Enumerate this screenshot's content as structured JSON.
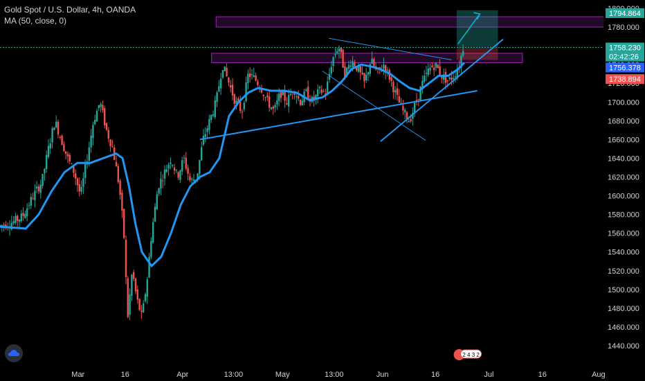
{
  "header": {
    "symbol_line": "Gold Spot / U.S. Dollar, 4h, OANDA",
    "indicator_line": "MA (50, close, 0)"
  },
  "colors": {
    "background": "#000000",
    "bull": "#26a69a",
    "bear": "#ef5350",
    "ma": "#2196f3",
    "trendline": "#2196f3",
    "zone": "#9c27b0",
    "target_arrow": "#00bcd4",
    "current_price": "#26a69a",
    "ma_label": "#2962ff",
    "low_label": "#ef5350"
  },
  "chart_data": {
    "type": "candlestick",
    "title": "Gold Spot / U.S. Dollar, 4h, OANDA",
    "indicator": "MA (50, close, 0)",
    "ylim": [
      1430,
      1800
    ],
    "y_ticks": [
      1440,
      1460,
      1480,
      1500,
      1520,
      1540,
      1560,
      1580,
      1600,
      1620,
      1640,
      1660,
      1680,
      1700,
      1720,
      1740,
      1760,
      1780,
      1800
    ],
    "y_tick_labels": [
      "1440.000",
      "1460.000",
      "1480.000",
      "1500.000",
      "1520.000",
      "1540.000",
      "1560.000",
      "1580.000",
      "1600.000",
      "1620.000",
      "1640.000",
      "1660.000",
      "1680.000",
      "1700.000",
      "1720.000",
      "1740.000",
      "1760.000",
      "1780.000",
      "1800.000"
    ],
    "x_ticks": [
      "Mar",
      "16",
      "Apr",
      "13:00",
      "May",
      "13:00",
      "Jun",
      "16",
      "Jul",
      "16",
      "Aug"
    ],
    "x_tick_pos": [
      0.121,
      0.194,
      0.283,
      0.362,
      0.438,
      0.518,
      0.593,
      0.675,
      0.758,
      0.841,
      0.928
    ],
    "price_path": [
      [
        0.0,
        1568
      ],
      [
        0.02,
        1572
      ],
      [
        0.035,
        1578
      ],
      [
        0.05,
        1598
      ],
      [
        0.065,
        1615
      ],
      [
        0.075,
        1650
      ],
      [
        0.085,
        1680
      ],
      [
        0.095,
        1660
      ],
      [
        0.105,
        1640
      ],
      [
        0.115,
        1625
      ],
      [
        0.125,
        1600
      ],
      [
        0.135,
        1640
      ],
      [
        0.145,
        1680
      ],
      [
        0.155,
        1700
      ],
      [
        0.165,
        1670
      ],
      [
        0.175,
        1650
      ],
      [
        0.185,
        1610
      ],
      [
        0.192,
        1560
      ],
      [
        0.198,
        1470
      ],
      [
        0.205,
        1520
      ],
      [
        0.212,
        1490
      ],
      [
        0.22,
        1470
      ],
      [
        0.228,
        1510
      ],
      [
        0.235,
        1560
      ],
      [
        0.245,
        1610
      ],
      [
        0.255,
        1625
      ],
      [
        0.265,
        1640
      ],
      [
        0.275,
        1620
      ],
      [
        0.285,
        1640
      ],
      [
        0.295,
        1615
      ],
      [
        0.305,
        1620
      ],
      [
        0.315,
        1660
      ],
      [
        0.325,
        1680
      ],
      [
        0.335,
        1700
      ],
      [
        0.345,
        1740
      ],
      [
        0.355,
        1720
      ],
      [
        0.365,
        1700
      ],
      [
        0.375,
        1690
      ],
      [
        0.385,
        1730
      ],
      [
        0.395,
        1725
      ],
      [
        0.405,
        1715
      ],
      [
        0.415,
        1700
      ],
      [
        0.425,
        1690
      ],
      [
        0.435,
        1710
      ],
      [
        0.445,
        1700
      ],
      [
        0.455,
        1715
      ],
      [
        0.465,
        1700
      ],
      [
        0.475,
        1710
      ],
      [
        0.485,
        1700
      ],
      [
        0.495,
        1712
      ],
      [
        0.505,
        1710
      ],
      [
        0.515,
        1745
      ],
      [
        0.525,
        1760
      ],
      [
        0.535,
        1730
      ],
      [
        0.545,
        1745
      ],
      [
        0.555,
        1735
      ],
      [
        0.565,
        1720
      ],
      [
        0.575,
        1745
      ],
      [
        0.585,
        1730
      ],
      [
        0.595,
        1740
      ],
      [
        0.605,
        1725
      ],
      [
        0.615,
        1705
      ],
      [
        0.625,
        1690
      ],
      [
        0.635,
        1680
      ],
      [
        0.645,
        1700
      ],
      [
        0.655,
        1720
      ],
      [
        0.665,
        1735
      ],
      [
        0.675,
        1740
      ],
      [
        0.685,
        1728
      ],
      [
        0.695,
        1722
      ],
      [
        0.705,
        1730
      ],
      [
        0.712,
        1740
      ],
      [
        0.718,
        1758
      ]
    ],
    "ma_path": [
      [
        0.0,
        1567
      ],
      [
        0.04,
        1565
      ],
      [
        0.06,
        1580
      ],
      [
        0.08,
        1605
      ],
      [
        0.1,
        1625
      ],
      [
        0.12,
        1635
      ],
      [
        0.14,
        1635
      ],
      [
        0.16,
        1640
      ],
      [
        0.18,
        1645
      ],
      [
        0.19,
        1640
      ],
      [
        0.2,
        1610
      ],
      [
        0.21,
        1570
      ],
      [
        0.22,
        1540
      ],
      [
        0.235,
        1525
      ],
      [
        0.25,
        1535
      ],
      [
        0.265,
        1560
      ],
      [
        0.28,
        1590
      ],
      [
        0.295,
        1610
      ],
      [
        0.31,
        1620
      ],
      [
        0.325,
        1625
      ],
      [
        0.34,
        1640
      ],
      [
        0.355,
        1685
      ],
      [
        0.37,
        1700
      ],
      [
        0.385,
        1710
      ],
      [
        0.4,
        1715
      ],
      [
        0.42,
        1712
      ],
      [
        0.44,
        1712
      ],
      [
        0.46,
        1710
      ],
      [
        0.48,
        1702
      ],
      [
        0.5,
        1705
      ],
      [
        0.515,
        1712
      ],
      [
        0.53,
        1722
      ],
      [
        0.545,
        1735
      ],
      [
        0.56,
        1740
      ],
      [
        0.575,
        1738
      ],
      [
        0.59,
        1735
      ],
      [
        0.605,
        1730
      ],
      [
        0.62,
        1722
      ],
      [
        0.635,
        1715
      ],
      [
        0.65,
        1712
      ],
      [
        0.665,
        1720
      ],
      [
        0.68,
        1728
      ],
      [
        0.695,
        1728
      ],
      [
        0.71,
        1735
      ],
      [
        0.72,
        1742
      ]
    ],
    "zones": [
      {
        "x0": 0.335,
        "x1": 0.937,
        "y0": 1780,
        "y1": 1791
      },
      {
        "x0": 0.328,
        "x1": 0.81,
        "y0": 1742,
        "y1": 1752
      }
    ],
    "trendlines": [
      {
        "x0": 0.31,
        "y0": 1660,
        "x1": 0.74,
        "y1": 1712,
        "w": 2
      },
      {
        "x0": 0.59,
        "y0": 1658,
        "x1": 0.78,
        "y1": 1767,
        "w": 2
      },
      {
        "x0": 0.51,
        "y0": 1768,
        "x1": 0.7,
        "y1": 1745,
        "w": 1
      },
      {
        "x0": 0.5,
        "y0": 1733,
        "x1": 0.66,
        "y1": 1659,
        "w": 1
      }
    ],
    "target_box": {
      "x0": 0.708,
      "x1": 0.772,
      "y0": 1758,
      "y1": 1798
    },
    "target_arrow": [
      [
        0.71,
        1762
      ],
      [
        0.744,
        1794
      ]
    ],
    "price_labels": [
      {
        "value": "1794.864",
        "price": 1794.864,
        "color": "#26a69a"
      },
      {
        "value": "1758.230",
        "price": 1758.23,
        "color": "#26a69a"
      },
      {
        "value": "02:42:26",
        "price": 1748.5,
        "color": "#26a69a"
      },
      {
        "value": "1756.378",
        "price": 1736.8,
        "color": "#2962ff"
      },
      {
        "value": "1738.894",
        "price": 1724.5,
        "color": "#ef5350"
      }
    ],
    "current_price_line": 1758.23,
    "event_badge": "2 4 3 2"
  }
}
